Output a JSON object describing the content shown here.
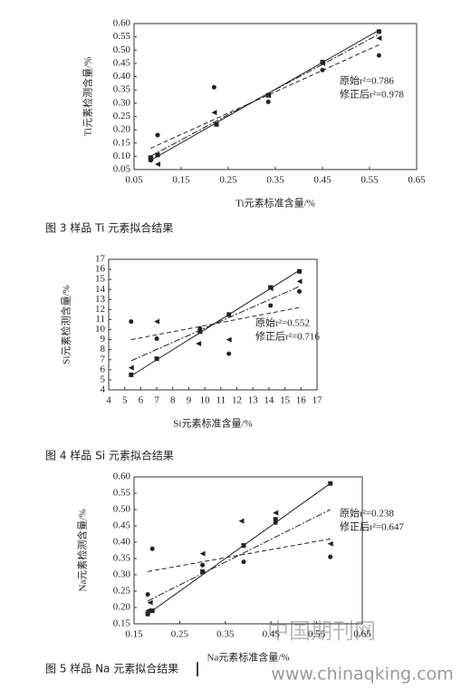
{
  "chart_data": [
    {
      "type": "scatter",
      "x_label": "Ti元素标准含量/%",
      "y_label": "Ti元素检测含量/%",
      "xlim": [
        0.05,
        0.65
      ],
      "xticks": [
        0.05,
        0.15,
        0.25,
        0.35,
        0.45,
        0.55,
        0.65
      ],
      "ylim": [
        0.05,
        0.6
      ],
      "yticks": [
        {
          "value": 0.05,
          "label": "0.05"
        },
        {
          "value": 0.1,
          "label": "0.10"
        },
        {
          "value": 0.15,
          "label": "0.15"
        },
        {
          "value": 0.2,
          "label": "0.20"
        },
        {
          "value": 0.25,
          "label": "0.25"
        },
        {
          "value": 0.3,
          "label": "0.30"
        },
        {
          "value": 0.35,
          "label": "0.35"
        },
        {
          "value": 0.4,
          "label": "0.40"
        },
        {
          "value": 0.45,
          "label": "0.45"
        },
        {
          "value": 0.5,
          "label": "0.50"
        },
        {
          "value": 0.55,
          "label": "0.55"
        },
        {
          "value": 0.6,
          "label": "0.60"
        }
      ],
      "annotations": [
        "原始r²=0.786",
        "修正后r²=0.978"
      ],
      "series": [
        {
          "marker": "square",
          "color": "#222",
          "line": "solid",
          "x": [
            0.085,
            0.1,
            0.225,
            0.335,
            0.45,
            0.57
          ],
          "values": [
            0.095,
            0.105,
            0.22,
            0.33,
            0.455,
            0.57
          ],
          "fit_x": [
            0.085,
            0.57
          ],
          "fit_y": [
            0.085,
            0.575
          ]
        },
        {
          "marker": "circle",
          "color": "#222",
          "line": "dashed",
          "x": [
            0.085,
            0.1,
            0.22,
            0.335,
            0.45,
            0.57
          ],
          "values": [
            0.085,
            0.18,
            0.36,
            0.305,
            0.425,
            0.48
          ],
          "fit_x": [
            0.085,
            0.57
          ],
          "fit_y": [
            0.13,
            0.52
          ]
        },
        {
          "marker": "triangle",
          "color": "#222",
          "line": "dashdot",
          "x": [
            0.085,
            0.1,
            0.22,
            0.335,
            0.45,
            0.57
          ],
          "values": [
            0.09,
            0.07,
            0.265,
            0.33,
            0.45,
            0.545
          ],
          "fit_x": [
            0.085,
            0.57
          ],
          "fit_y": [
            0.1,
            0.56
          ]
        }
      ]
    },
    {
      "type": "scatter",
      "x_label": "Si元素标准含量/%",
      "y_label": "Si元素检测含量/%",
      "xlim": [
        4,
        17
      ],
      "xticks": [
        4,
        5,
        6,
        7,
        8,
        9,
        10,
        11,
        12,
        13,
        14,
        15,
        16,
        17
      ],
      "ylim": [
        4,
        17
      ],
      "yticks": [
        4,
        5,
        6,
        7,
        8,
        9,
        10,
        11,
        12,
        13,
        14,
        15,
        16,
        17
      ],
      "annotations": [
        "原始r²=0.552",
        "修正后r²=0.716"
      ],
      "series": [
        {
          "marker": "square",
          "color": "#222",
          "line": "solid",
          "x": [
            5.4,
            7,
            9.7,
            11.5,
            14.1,
            15.9
          ],
          "values": [
            5.5,
            7.1,
            9.8,
            11.5,
            14.2,
            15.8
          ],
          "fit_x": [
            5.4,
            15.9
          ],
          "fit_y": [
            5.4,
            15.9
          ]
        },
        {
          "marker": "circle",
          "color": "#222",
          "line": "dashed",
          "x": [
            5.4,
            7,
            9.7,
            11.5,
            14.1,
            15.9
          ],
          "values": [
            10.8,
            9.1,
            10.1,
            7.6,
            12.4,
            13.8
          ],
          "fit_x": [
            5.4,
            15.9
          ],
          "fit_y": [
            9,
            12.2
          ]
        },
        {
          "marker": "triangle",
          "color": "#222",
          "line": "dashdot",
          "x": [
            5.4,
            7,
            9.6,
            11.5,
            14.1,
            15.9
          ],
          "values": [
            6.2,
            10.8,
            8.6,
            9,
            14.1,
            14.8
          ],
          "fit_x": [
            5.4,
            15.9
          ],
          "fit_y": [
            6.9,
            14.3
          ]
        }
      ]
    },
    {
      "type": "scatter",
      "x_label": "Na元素标准含量/%",
      "y_label": "Na元素检测含量/%",
      "xlim": [
        0.15,
        0.65
      ],
      "xticks": [
        0.15,
        0.25,
        0.35,
        0.45,
        0.55,
        0.65
      ],
      "ylim": [
        0.15,
        0.6
      ],
      "yticks": [
        0.15,
        {
          "value": 0.2,
          "label": "0.20"
        },
        0.25,
        {
          "value": 0.3,
          "label": "0.30"
        },
        0.35,
        {
          "value": 0.4,
          "label": "0.40"
        },
        0.45,
        {
          "value": 0.5,
          "label": "0.50"
        },
        0.55,
        {
          "value": 0.6,
          "label": "0.60"
        }
      ],
      "annotations": [
        "原始r²=0.238",
        "修正后r²=0.647"
      ],
      "series": [
        {
          "marker": "square",
          "color": "#222",
          "line": "solid",
          "x": [
            0.18,
            0.19,
            0.3,
            0.39,
            0.46,
            0.58
          ],
          "values": [
            0.18,
            0.19,
            0.31,
            0.39,
            0.47,
            0.58
          ],
          "fit_x": [
            0.18,
            0.58
          ],
          "fit_y": [
            0.18,
            0.58
          ]
        },
        {
          "marker": "circle",
          "color": "#222",
          "line": "dashed",
          "x": [
            0.18,
            0.19,
            0.3,
            0.39,
            0.46,
            0.58
          ],
          "values": [
            0.24,
            0.38,
            0.33,
            0.34,
            0.46,
            0.355
          ],
          "fit_x": [
            0.18,
            0.58
          ],
          "fit_y": [
            0.31,
            0.41
          ]
        },
        {
          "marker": "triangle",
          "color": "#222",
          "line": "dashdot",
          "x": [
            0.18,
            0.185,
            0.3,
            0.385,
            0.46,
            0.58
          ],
          "values": [
            0.19,
            0.215,
            0.365,
            0.465,
            0.49,
            0.395
          ],
          "fit_x": [
            0.18,
            0.58
          ],
          "fit_y": [
            0.22,
            0.5
          ]
        }
      ]
    }
  ],
  "captions": [
    "图 3 样品 Ti 元素拟合结果",
    "图 4 样品 Si 元素拟合结果",
    "图 5 样品 Na 元素拟合结果"
  ],
  "watermark": {
    "title": "中国期刊网",
    "url": "www.chinaqking.com"
  }
}
